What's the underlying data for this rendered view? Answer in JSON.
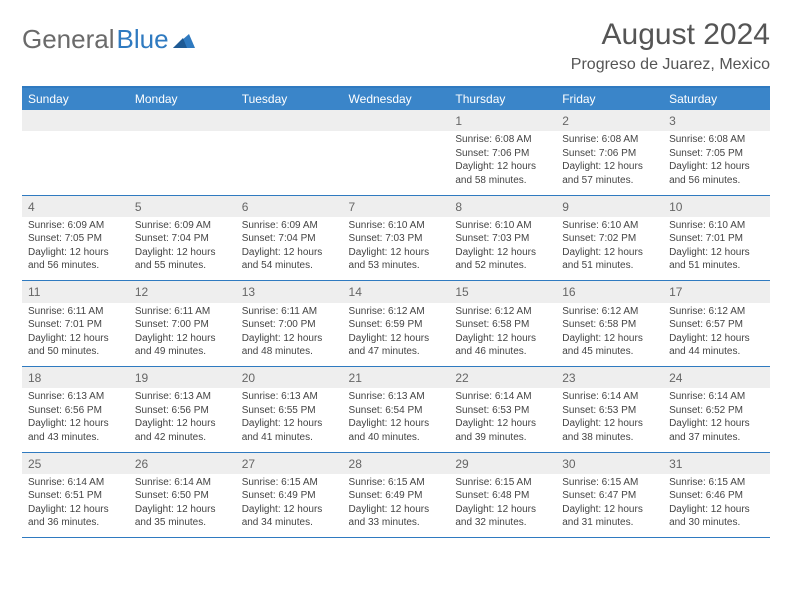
{
  "brand": {
    "part1": "General",
    "part2": "Blue"
  },
  "title": "August 2024",
  "location": "Progreso de Juarez, Mexico",
  "colors": {
    "header_bg": "#3a85c9",
    "rule": "#2f7ac0",
    "daynum_bg": "#eeeeee",
    "text": "#444444",
    "title_text": "#555555"
  },
  "weekdays": [
    "Sunday",
    "Monday",
    "Tuesday",
    "Wednesday",
    "Thursday",
    "Friday",
    "Saturday"
  ],
  "weeks": [
    {
      "nums": [
        "",
        "",
        "",
        "",
        "1",
        "2",
        "3"
      ],
      "cells": [
        "",
        "",
        "",
        "",
        "Sunrise: 6:08 AM\nSunset: 7:06 PM\nDaylight: 12 hours and 58 minutes.",
        "Sunrise: 6:08 AM\nSunset: 7:06 PM\nDaylight: 12 hours and 57 minutes.",
        "Sunrise: 6:08 AM\nSunset: 7:05 PM\nDaylight: 12 hours and 56 minutes."
      ]
    },
    {
      "nums": [
        "4",
        "5",
        "6",
        "7",
        "8",
        "9",
        "10"
      ],
      "cells": [
        "Sunrise: 6:09 AM\nSunset: 7:05 PM\nDaylight: 12 hours and 56 minutes.",
        "Sunrise: 6:09 AM\nSunset: 7:04 PM\nDaylight: 12 hours and 55 minutes.",
        "Sunrise: 6:09 AM\nSunset: 7:04 PM\nDaylight: 12 hours and 54 minutes.",
        "Sunrise: 6:10 AM\nSunset: 7:03 PM\nDaylight: 12 hours and 53 minutes.",
        "Sunrise: 6:10 AM\nSunset: 7:03 PM\nDaylight: 12 hours and 52 minutes.",
        "Sunrise: 6:10 AM\nSunset: 7:02 PM\nDaylight: 12 hours and 51 minutes.",
        "Sunrise: 6:10 AM\nSunset: 7:01 PM\nDaylight: 12 hours and 51 minutes."
      ]
    },
    {
      "nums": [
        "11",
        "12",
        "13",
        "14",
        "15",
        "16",
        "17"
      ],
      "cells": [
        "Sunrise: 6:11 AM\nSunset: 7:01 PM\nDaylight: 12 hours and 50 minutes.",
        "Sunrise: 6:11 AM\nSunset: 7:00 PM\nDaylight: 12 hours and 49 minutes.",
        "Sunrise: 6:11 AM\nSunset: 7:00 PM\nDaylight: 12 hours and 48 minutes.",
        "Sunrise: 6:12 AM\nSunset: 6:59 PM\nDaylight: 12 hours and 47 minutes.",
        "Sunrise: 6:12 AM\nSunset: 6:58 PM\nDaylight: 12 hours and 46 minutes.",
        "Sunrise: 6:12 AM\nSunset: 6:58 PM\nDaylight: 12 hours and 45 minutes.",
        "Sunrise: 6:12 AM\nSunset: 6:57 PM\nDaylight: 12 hours and 44 minutes."
      ]
    },
    {
      "nums": [
        "18",
        "19",
        "20",
        "21",
        "22",
        "23",
        "24"
      ],
      "cells": [
        "Sunrise: 6:13 AM\nSunset: 6:56 PM\nDaylight: 12 hours and 43 minutes.",
        "Sunrise: 6:13 AM\nSunset: 6:56 PM\nDaylight: 12 hours and 42 minutes.",
        "Sunrise: 6:13 AM\nSunset: 6:55 PM\nDaylight: 12 hours and 41 minutes.",
        "Sunrise: 6:13 AM\nSunset: 6:54 PM\nDaylight: 12 hours and 40 minutes.",
        "Sunrise: 6:14 AM\nSunset: 6:53 PM\nDaylight: 12 hours and 39 minutes.",
        "Sunrise: 6:14 AM\nSunset: 6:53 PM\nDaylight: 12 hours and 38 minutes.",
        "Sunrise: 6:14 AM\nSunset: 6:52 PM\nDaylight: 12 hours and 37 minutes."
      ]
    },
    {
      "nums": [
        "25",
        "26",
        "27",
        "28",
        "29",
        "30",
        "31"
      ],
      "cells": [
        "Sunrise: 6:14 AM\nSunset: 6:51 PM\nDaylight: 12 hours and 36 minutes.",
        "Sunrise: 6:14 AM\nSunset: 6:50 PM\nDaylight: 12 hours and 35 minutes.",
        "Sunrise: 6:15 AM\nSunset: 6:49 PM\nDaylight: 12 hours and 34 minutes.",
        "Sunrise: 6:15 AM\nSunset: 6:49 PM\nDaylight: 12 hours and 33 minutes.",
        "Sunrise: 6:15 AM\nSunset: 6:48 PM\nDaylight: 12 hours and 32 minutes.",
        "Sunrise: 6:15 AM\nSunset: 6:47 PM\nDaylight: 12 hours and 31 minutes.",
        "Sunrise: 6:15 AM\nSunset: 6:46 PM\nDaylight: 12 hours and 30 minutes."
      ]
    }
  ]
}
